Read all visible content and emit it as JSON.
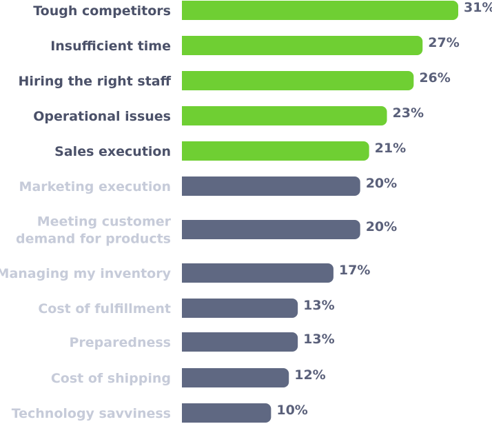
{
  "chart_data": {
    "type": "bar",
    "orientation": "horizontal",
    "categories": [
      "Tough competitors",
      "Insufficient time",
      "Hiring the right staff",
      "Operational issues",
      "Sales execution",
      "Marketing execution",
      "Meeting customer demand for products",
      "Managing my inventory",
      "Cost of fulfillment",
      "Preparedness",
      "Cost of shipping",
      "Technology savviness"
    ],
    "category_lines": [
      [
        "Tough competitors"
      ],
      [
        "Insufficient time"
      ],
      [
        "Hiring the right staff"
      ],
      [
        "Operational issues"
      ],
      [
        "Sales execution"
      ],
      [
        "Marketing execution"
      ],
      [
        "Meeting customer",
        "demand for products"
      ],
      [
        "Managing my inventory"
      ],
      [
        "Cost of fulfillment"
      ],
      [
        "Preparedness"
      ],
      [
        "Cost of shipping"
      ],
      [
        "Technology savviness"
      ]
    ],
    "values": [
      31,
      27,
      26,
      23,
      21,
      20,
      20,
      17,
      13,
      13,
      12,
      10
    ],
    "value_labels": [
      "31%",
      "27%",
      "26%",
      "23%",
      "21%",
      "20%",
      "20%",
      "17%",
      "13%",
      "13%",
      "12%",
      "10%"
    ],
    "highlighted_count": 5,
    "colors": {
      "highlight_bar": "#6fcf33",
      "other_bar": "#5f6882",
      "highlight_label": "#4b5169",
      "other_label": "#c6cbd9"
    },
    "unit": "%",
    "xlim": [
      0,
      31
    ],
    "grid": false,
    "legend": "none"
  }
}
